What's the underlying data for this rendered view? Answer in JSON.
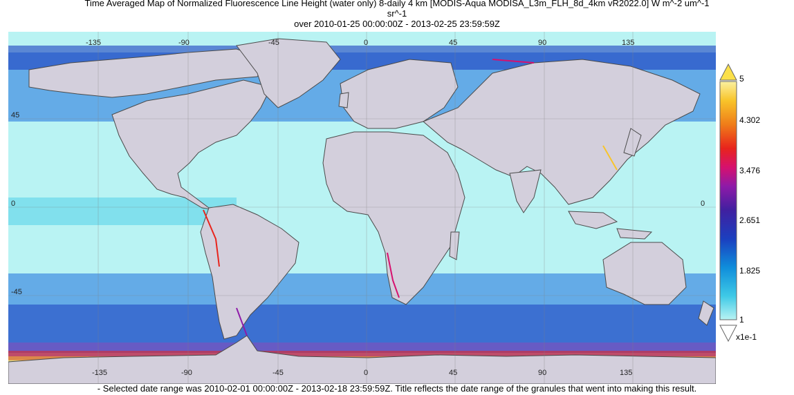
{
  "title": {
    "line1": "Time Averaged Map of Normalized Fluorescence Line Height (water only) 8-daily 4 km [MODIS-Aqua MODISA_L3m_FLH_8d_4km vR2022.0] W m^-2 um^-1",
    "line2": "sr^-1",
    "line3": "over 2010-01-25 00:00:00Z - 2013-02-25 23:59:59Z"
  },
  "map": {
    "top_lon_ticks": [
      "-135",
      "-90",
      "-45",
      "0",
      "45",
      "90",
      "135"
    ],
    "bottom_lon_ticks": [
      "-135",
      "-90",
      "-45",
      "0",
      "45",
      "90",
      "135"
    ],
    "left_lat_ticks": [
      "45",
      "0",
      "-45"
    ],
    "right_lat_ticks": [
      "0"
    ],
    "land_color": "#d3cfdc",
    "ocean_low_color": "#b9f3f3",
    "border_color": "#4a4a4a"
  },
  "colorbar": {
    "max_label": "5",
    "tick_labels": [
      "4.302",
      "3.476",
      "2.651",
      "1.825"
    ],
    "min_label": "1",
    "unit_multiplier": "x1e-1",
    "palette": [
      "#b9f3f3",
      "#3ec9e6",
      "#0f8ddb",
      "#1b3fbf",
      "#4020a0",
      "#8e1aa8",
      "#d6116e",
      "#e8241c",
      "#ef7d19",
      "#f8c42a",
      "#fbf1a0"
    ]
  },
  "footnote": "- Selected date range was 2010-02-01 00:00:00Z - 2013-02-18 23:59:59Z. Title reflects the date range of the granules that went into making this result."
}
